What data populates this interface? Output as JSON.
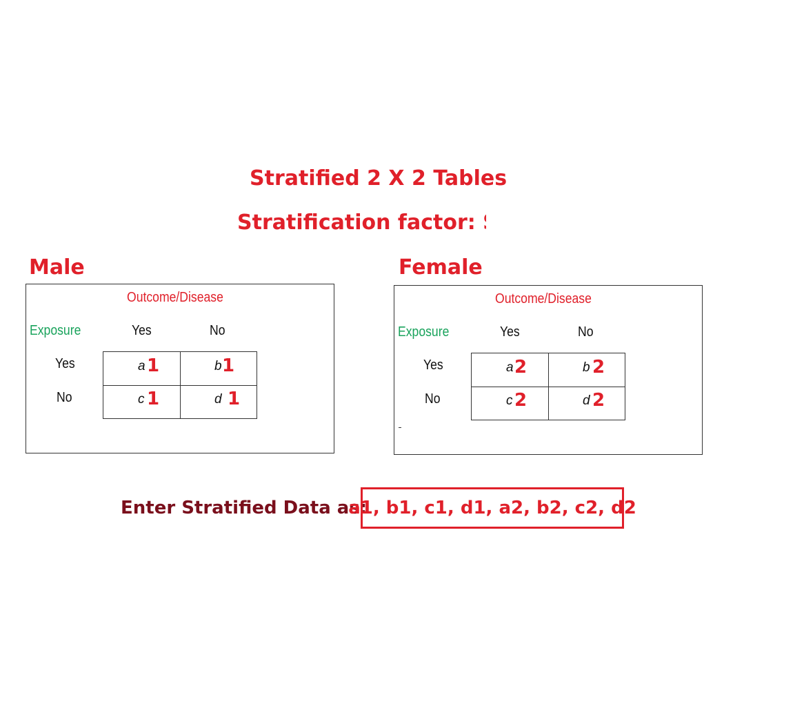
{
  "title": "Stratified 2 X 2 Tables",
  "subtitle": "Stratification factor: Sex",
  "strata": [
    {
      "label": "Male",
      "outcome_header": "Outcome/Disease",
      "exposure_header": "Exposure",
      "col_yes": "Yes",
      "col_no": "No",
      "row_yes": "Yes",
      "row_no": "No",
      "cells": {
        "a": {
          "letter": "a",
          "index": "1"
        },
        "b": {
          "letter": "b",
          "index": "1"
        },
        "c": {
          "letter": "c",
          "index": "1"
        },
        "d": {
          "letter": "d",
          "index": "1"
        }
      }
    },
    {
      "label": "Female",
      "outcome_header": "Outcome/Disease",
      "exposure_header": "Exposure",
      "col_yes": "Yes",
      "col_no": "No",
      "row_yes": "Yes",
      "row_no": "No",
      "cells": {
        "a": {
          "letter": "a",
          "index": "2"
        },
        "b": {
          "letter": "b",
          "index": "2"
        },
        "c": {
          "letter": "c",
          "index": "2"
        },
        "d": {
          "letter": "d",
          "index": "2"
        }
      }
    }
  ],
  "entry": {
    "label": "Enter Stratified Data as:",
    "format": "a1, b1, c1, d1, a2, b2, c2, d2"
  }
}
